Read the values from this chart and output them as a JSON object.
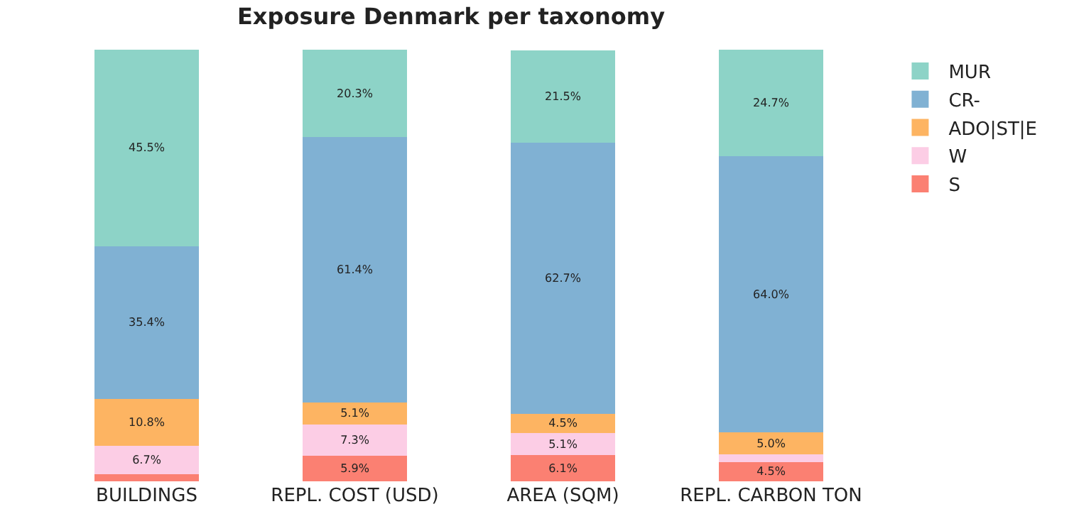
{
  "chart_data": {
    "type": "bar",
    "title": "Exposure Denmark per taxonomy",
    "stacked": true,
    "legend": "top right",
    "categories": [
      "BUILDINGS",
      "REPL. COST (USD)",
      "AREA (SQM)",
      "REPL. CARBON TON"
    ],
    "series": [
      {
        "name": "S",
        "color": "#fb8072",
        "values": [
          1.6,
          5.9,
          6.1,
          4.5
        ],
        "value_labels": [
          null,
          "5.9%",
          "6.1%",
          "4.5%"
        ]
      },
      {
        "name": "W",
        "color": "#fccde5",
        "values": [
          6.7,
          7.3,
          5.1,
          1.8
        ],
        "value_labels": [
          "6.7%",
          "7.3%",
          "5.1%",
          null
        ]
      },
      {
        "name": "ADO|ST|E",
        "color": "#fdb462",
        "values": [
          10.8,
          5.1,
          4.5,
          5.0
        ],
        "value_labels": [
          "10.8%",
          "5.1%",
          "4.5%",
          "5.0%"
        ]
      },
      {
        "name": "CR-",
        "color": "#80b1d3",
        "values": [
          35.4,
          61.4,
          62.7,
          64.0
        ],
        "value_labels": [
          "35.4%",
          "61.4%",
          "62.7%",
          "64.0%"
        ]
      },
      {
        "name": "MUR",
        "color": "#8dd3c7",
        "values": [
          45.5,
          20.3,
          21.5,
          24.7
        ],
        "value_labels": [
          "45.5%",
          "20.3%",
          "21.5%",
          "24.7%"
        ]
      }
    ]
  }
}
